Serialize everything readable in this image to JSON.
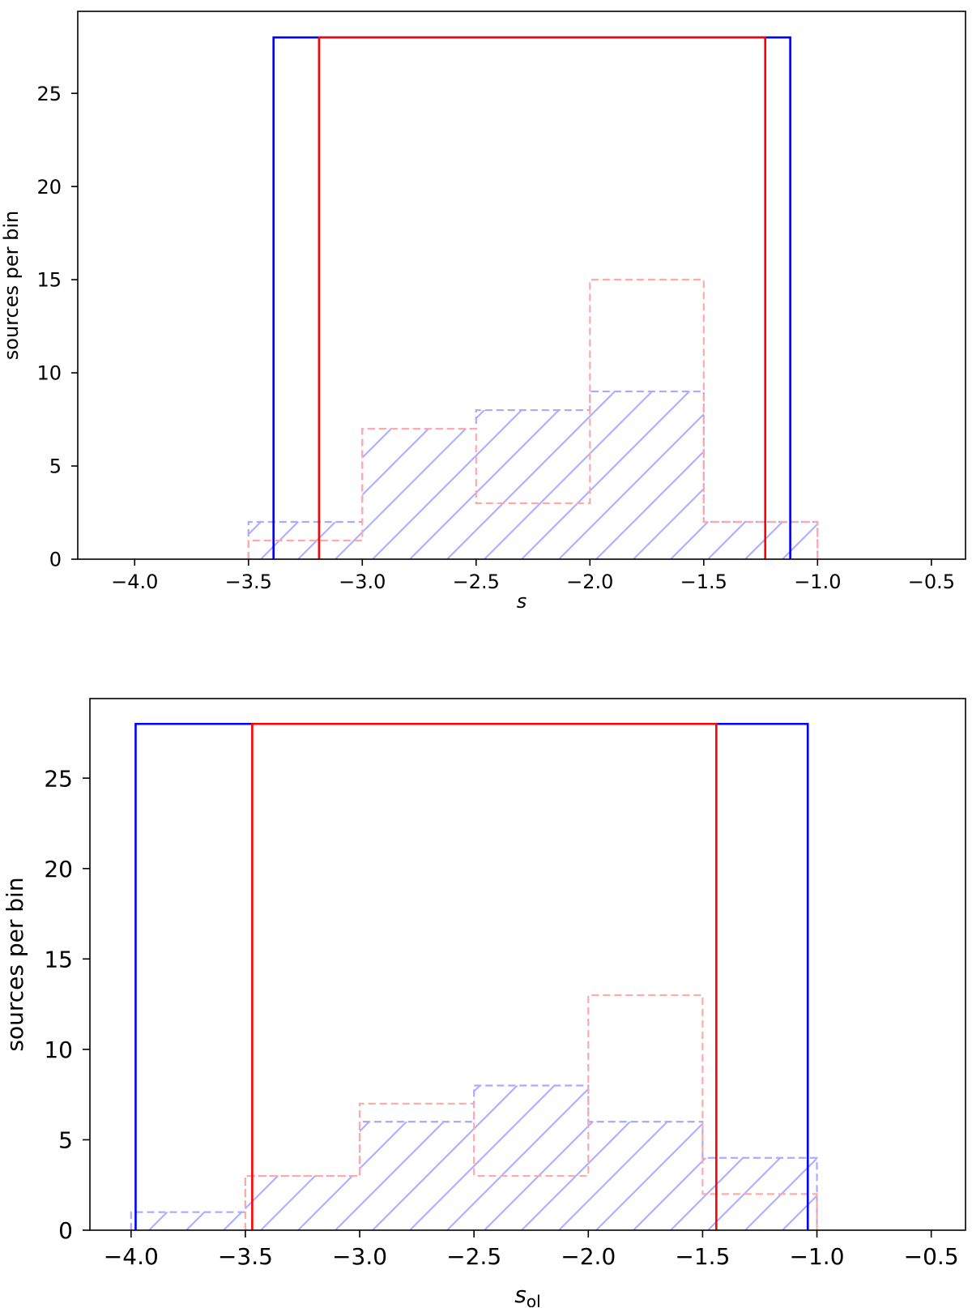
{
  "chart_data": [
    {
      "type": "histogram",
      "xlabel": "s",
      "xlabel_sub": "",
      "ylabel": "sources per bin",
      "xlim": [
        -4.25,
        -0.35
      ],
      "ylim": [
        0,
        29.4
      ],
      "xticks": [
        -4.0,
        -3.5,
        -3.0,
        -2.5,
        -2.0,
        -1.5,
        -1.0,
        -0.5
      ],
      "xtick_labels": [
        "−4.0",
        "−3.5",
        "−3.0",
        "−2.5",
        "−2.0",
        "−1.5",
        "−1.0",
        "−0.5"
      ],
      "yticks": [
        0,
        5,
        10,
        15,
        20,
        25
      ],
      "ytick_labels": [
        "0",
        "5",
        "10",
        "15",
        "20",
        "25"
      ],
      "grid": false,
      "series": [
        {
          "style": "dashed-hatched",
          "color": "#aaaaff",
          "bin_edges": [
            -3.5,
            -3.0,
            -2.5,
            -2.0,
            -1.5,
            -1.0
          ],
          "counts": [
            2,
            7,
            8,
            9,
            2
          ]
        },
        {
          "style": "dashed",
          "color": "#ffaaaa",
          "bin_edges": [
            -3.5,
            -3.0,
            -2.5,
            -2.0,
            -1.5,
            -1.0
          ],
          "counts": [
            1,
            7,
            3,
            15,
            2
          ]
        },
        {
          "style": "box",
          "color": "#0000ff",
          "x_left": -3.39,
          "x_right": -1.12,
          "height": 28
        },
        {
          "style": "box",
          "color": "#ff0000",
          "x_left": -3.19,
          "x_right": -1.23,
          "height": 28
        }
      ]
    },
    {
      "type": "histogram",
      "xlabel": "s",
      "xlabel_sub": "ol",
      "ylabel": "sources per bin",
      "xlim": [
        -4.18,
        -0.35
      ],
      "ylim": [
        0,
        29.4
      ],
      "xticks": [
        -4.0,
        -3.5,
        -3.0,
        -2.5,
        -2.0,
        -1.5,
        -1.0,
        -0.5
      ],
      "xtick_labels": [
        "−4.0",
        "−3.5",
        "−3.0",
        "−2.5",
        "−2.0",
        "−1.5",
        "−1.0",
        "−0.5"
      ],
      "yticks": [
        0,
        5,
        10,
        15,
        20,
        25
      ],
      "ytick_labels": [
        "0",
        "5",
        "10",
        "15",
        "20",
        "25"
      ],
      "grid": false,
      "series": [
        {
          "style": "dashed-hatched",
          "color": "#aaaaff",
          "bin_edges": [
            -4.0,
            -3.5,
            -3.0,
            -2.5,
            -2.0,
            -1.5,
            -1.0
          ],
          "counts": [
            1,
            3,
            6,
            8,
            6,
            4
          ]
        },
        {
          "style": "dashed",
          "color": "#ffaaaa",
          "bin_edges": [
            -3.5,
            -3.0,
            -2.5,
            -2.0,
            -1.5,
            -1.0
          ],
          "counts": [
            3,
            7,
            3,
            13,
            2
          ]
        },
        {
          "style": "box",
          "color": "#0000ff",
          "x_left": -3.98,
          "x_right": -1.04,
          "height": 28
        },
        {
          "style": "box",
          "color": "#ff0000",
          "x_left": -3.47,
          "x_right": -1.44,
          "height": 28
        }
      ]
    }
  ]
}
